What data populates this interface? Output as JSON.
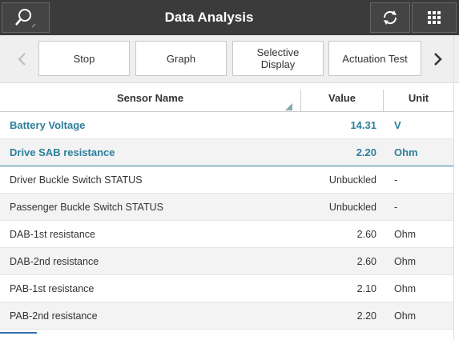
{
  "header": {
    "title": "Data Analysis"
  },
  "toolbar": {
    "buttons": [
      "Stop",
      "Graph",
      "Selective Display",
      "Actuation Test"
    ]
  },
  "table": {
    "columns": [
      "Sensor Name",
      "Value",
      "Unit"
    ],
    "rows": [
      [
        "Battery Voltage",
        "14.31",
        "V"
      ],
      [
        "Drive SAB resistance",
        "2.20",
        "Ohm"
      ],
      [
        "Driver Buckle Switch STATUS",
        "Unbuckled",
        "-"
      ],
      [
        "Passenger Buckle Switch STATUS",
        "Unbuckled",
        "-"
      ],
      [
        "DAB-1st resistance",
        "2.60",
        "Ohm"
      ],
      [
        "DAB-2nd resistance",
        "2.60",
        "Ohm"
      ],
      [
        "PAB-1st resistance",
        "2.10",
        "Ohm"
      ],
      [
        "PAB-2nd resistance",
        "2.20",
        "Ohm"
      ]
    ]
  }
}
